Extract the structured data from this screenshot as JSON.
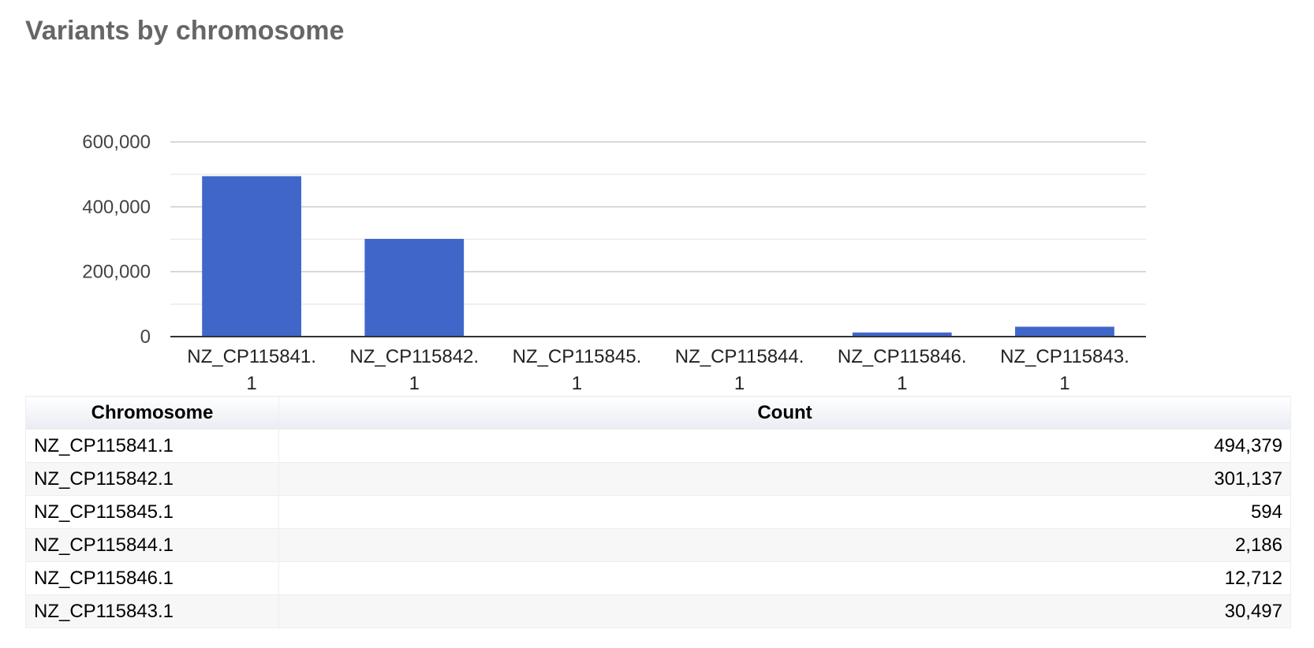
{
  "page": {
    "title": "Variants by chromosome"
  },
  "colors": {
    "bar": "#4066c9",
    "title": "#666666",
    "grid_major": "#cccccc",
    "grid_minor": "#ebebeb",
    "baseline": "#333333",
    "table_header_gradient_end": "#e9ecf4",
    "table_stripe": "#f7f7f7"
  },
  "chart_data": {
    "type": "bar",
    "title": "",
    "xlabel": "",
    "ylabel": "",
    "categories": [
      "NZ_CP115841.1",
      "NZ_CP115842.1",
      "NZ_CP115845.1",
      "NZ_CP115844.1",
      "NZ_CP115846.1",
      "NZ_CP115843.1"
    ],
    "category_label_lines": [
      [
        "NZ_CP115841.",
        "1"
      ],
      [
        "NZ_CP115842.",
        "1"
      ],
      [
        "NZ_CP115845.",
        "1"
      ],
      [
        "NZ_CP115844.",
        "1"
      ],
      [
        "NZ_CP115846.",
        "1"
      ],
      [
        "NZ_CP115843.",
        "1"
      ]
    ],
    "values": [
      494379,
      301137,
      594,
      2186,
      12712,
      30497
    ],
    "ylim": [
      0,
      600000
    ],
    "yticks": [
      0,
      200000,
      400000,
      600000
    ],
    "ytick_labels": [
      "0",
      "200,000",
      "400,000",
      "600,000"
    ],
    "minor_gridlines": [
      100000,
      300000,
      500000
    ],
    "grid": true,
    "legend": "none"
  },
  "table": {
    "headers": [
      "Chromosome",
      "Count"
    ],
    "rows": [
      [
        "NZ_CP115841.1",
        "494,379"
      ],
      [
        "NZ_CP115842.1",
        "301,137"
      ],
      [
        "NZ_CP115845.1",
        "594"
      ],
      [
        "NZ_CP115844.1",
        "2,186"
      ],
      [
        "NZ_CP115846.1",
        "12,712"
      ],
      [
        "NZ_CP115843.1",
        "30,497"
      ]
    ]
  }
}
